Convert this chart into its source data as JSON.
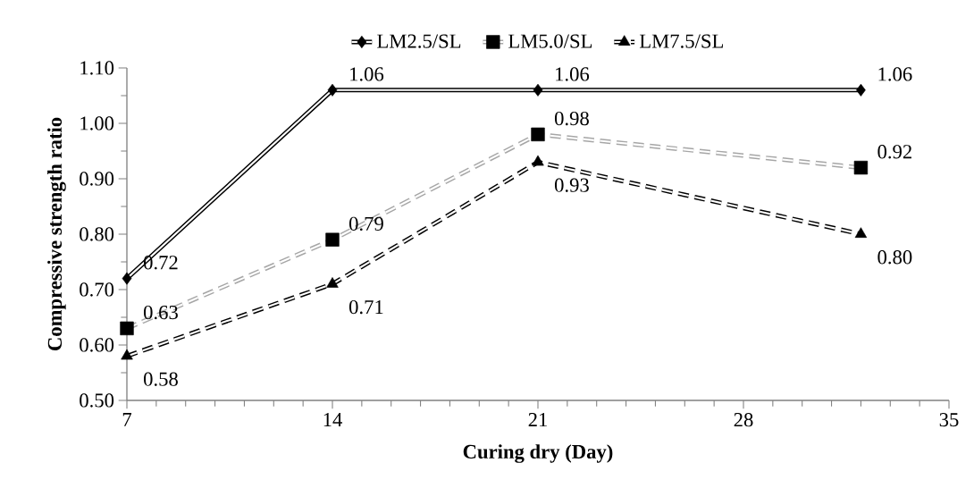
{
  "chart_data": {
    "type": "line",
    "xlabel": "Curing dry (Day)",
    "ylabel": "Compressive strength ratio",
    "x": [
      7,
      14,
      21,
      32
    ],
    "series": [
      {
        "name": "LM2.5/SL",
        "color": "#000000",
        "marker": "diamond",
        "line_style": "solid",
        "values": [
          0.72,
          1.06,
          1.06,
          1.06
        ],
        "value_labels": [
          "0.72",
          "1.06",
          "1.06",
          "1.06"
        ]
      },
      {
        "name": "LM5.0/SL",
        "color": "#a6a6a6",
        "marker": "square",
        "line_style": "dashed",
        "values": [
          0.63,
          0.79,
          0.98,
          0.92
        ],
        "value_labels": [
          "0.63",
          "0.79",
          "0.98",
          "0.92"
        ]
      },
      {
        "name": "LM7.5/SL",
        "color": "#000000",
        "marker": "triangle",
        "line_style": "dashed",
        "values": [
          0.58,
          0.71,
          0.93,
          0.8
        ],
        "value_labels": [
          "0.58",
          "0.71",
          "0.93",
          "0.80"
        ]
      }
    ],
    "xlim": [
      7,
      35
    ],
    "xticks": [
      7,
      14,
      21,
      28,
      35
    ],
    "ylim": [
      0.5,
      1.1
    ],
    "yticks": [
      {
        "value": 0.5,
        "label": "0.50"
      },
      {
        "value": 0.6,
        "label": "0.60"
      },
      {
        "value": 0.7,
        "label": "0.70"
      },
      {
        "value": 0.8,
        "label": "0.80"
      },
      {
        "value": 0.9,
        "label": "0.90"
      },
      {
        "value": 1.0,
        "label": "1.00"
      },
      {
        "value": 1.1,
        "label": "1.10"
      }
    ],
    "legend": "top",
    "grid": false
  }
}
